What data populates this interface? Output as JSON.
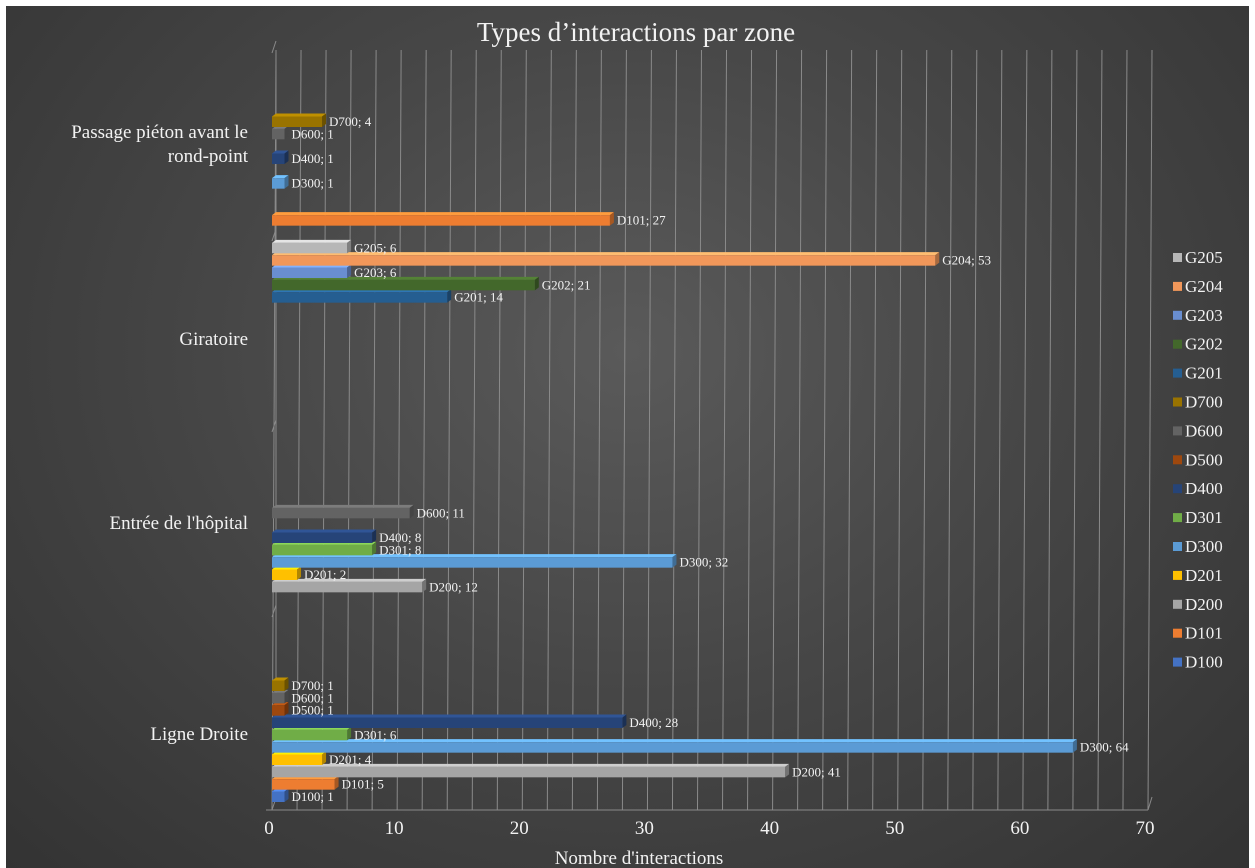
{
  "chart_data": {
    "type": "bar",
    "orientation": "horizontal",
    "title": "Types d’interactions par zone",
    "xlabel": "Nombre d'interactions",
    "ylabel": "",
    "xlim": [
      0,
      70
    ],
    "xticks": [
      0,
      10,
      20,
      30,
      40,
      50,
      60,
      70
    ],
    "grid": true,
    "legend_position": "right",
    "categories": [
      "Ligne Droite",
      "Entrée de l'hôpital",
      "Giratoire",
      "Passage piéton avant le rond-point"
    ],
    "category_lines": [
      [
        "Ligne Droite"
      ],
      [
        "Entrée de l'hôpital"
      ],
      [
        "Giratoire"
      ],
      [
        "Passage piéton avant le",
        "rond-point"
      ]
    ],
    "legend_order": [
      "G205",
      "G204",
      "G203",
      "G202",
      "G201",
      "D700",
      "D600",
      "D500",
      "D400",
      "D301",
      "D300",
      "D201",
      "D200",
      "D101",
      "D100"
    ],
    "series": [
      {
        "name": "D100",
        "color": "#4472c4",
        "values": [
          1,
          null,
          null,
          null
        ]
      },
      {
        "name": "D101",
        "color": "#ed7d31",
        "values": [
          5,
          null,
          null,
          27
        ]
      },
      {
        "name": "D200",
        "color": "#a5a5a5",
        "values": [
          41,
          12,
          null,
          null
        ]
      },
      {
        "name": "D201",
        "color": "#ffc000",
        "values": [
          4,
          2,
          null,
          null
        ]
      },
      {
        "name": "D300",
        "color": "#5b9bd5",
        "values": [
          64,
          32,
          null,
          1
        ]
      },
      {
        "name": "D301",
        "color": "#70ad47",
        "values": [
          6,
          8,
          null,
          null
        ]
      },
      {
        "name": "D400",
        "color": "#264478",
        "values": [
          28,
          8,
          null,
          1
        ]
      },
      {
        "name": "D500",
        "color": "#9e480e",
        "values": [
          1,
          null,
          null,
          null
        ]
      },
      {
        "name": "D600",
        "color": "#636363",
        "values": [
          1,
          11,
          null,
          1
        ]
      },
      {
        "name": "D700",
        "color": "#997300",
        "values": [
          1,
          null,
          null,
          4
        ]
      },
      {
        "name": "G201",
        "color": "#255e91",
        "values": [
          null,
          null,
          14,
          null
        ]
      },
      {
        "name": "G202",
        "color": "#43682b",
        "values": [
          null,
          null,
          21,
          null
        ]
      },
      {
        "name": "G203",
        "color": "#698ed0",
        "values": [
          null,
          null,
          6,
          null
        ]
      },
      {
        "name": "G204",
        "color": "#f1975a",
        "values": [
          null,
          null,
          53,
          null
        ]
      },
      {
        "name": "G205",
        "color": "#b7b7b7",
        "values": [
          null,
          null,
          6,
          null
        ]
      }
    ]
  }
}
